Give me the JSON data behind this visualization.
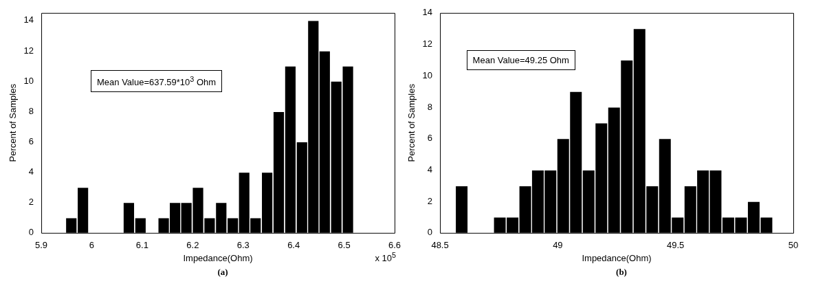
{
  "chart_data": [
    {
      "type": "histogram",
      "xlabel": "Impedance(Ohm)",
      "ylabel": "Percent of Samples",
      "bins": [
        5.948,
        5.971,
        5.994,
        6.017,
        6.039,
        6.062,
        6.085,
        6.108,
        6.131,
        6.154,
        6.176,
        6.199,
        6.222,
        6.245,
        6.268,
        6.291,
        6.313,
        6.336,
        6.359,
        6.382,
        6.405,
        6.428,
        6.45,
        6.473,
        6.496,
        6.519
      ],
      "values": [
        1,
        3,
        0,
        0,
        0,
        2,
        1,
        0,
        1,
        2,
        2,
        3,
        1,
        2,
        1,
        4,
        1,
        4,
        8,
        11,
        6,
        14,
        12,
        10,
        11
      ],
      "color": "#000000",
      "xlim": [
        5.9,
        6.6
      ],
      "xticks": [
        5.9,
        6,
        6.1,
        6.2,
        6.3,
        6.4,
        6.5,
        6.6
      ],
      "ylim": [
        0,
        14.5
      ],
      "yticks": [
        0,
        2,
        4,
        6,
        8,
        10,
        12,
        14
      ],
      "annotations": [
        "Mean Value=637.59*10$^{3}$ Ohm",
        "x 10$^{5}$",
        "(a)"
      ]
    },
    {
      "type": "histogram",
      "xlabel": "Impedance(Ohm)",
      "ylabel": "Percent of Samples",
      "bins": [
        48.565,
        48.619,
        48.673,
        48.727,
        48.781,
        48.835,
        48.889,
        48.942,
        48.996,
        49.05,
        49.104,
        49.158,
        49.212,
        49.266,
        49.32,
        49.374,
        49.428,
        49.482,
        49.536,
        49.59,
        49.643,
        49.697,
        49.751,
        49.805,
        49.859,
        49.913
      ],
      "values": [
        3,
        0,
        0,
        1,
        1,
        3,
        4,
        4,
        6,
        9,
        4,
        7,
        8,
        11,
        13,
        3,
        6,
        1,
        3,
        4,
        4,
        1,
        1,
        2,
        1
      ],
      "color": "#000000",
      "xlim": [
        48.5,
        50
      ],
      "xticks": [
        48.5,
        49,
        49.5,
        50
      ],
      "ylim": [
        0,
        14
      ],
      "yticks": [
        0,
        2,
        4,
        6,
        8,
        10,
        12,
        14
      ],
      "annotations": [
        "Mean Value=49.25 Ohm",
        "(b)"
      ]
    }
  ]
}
